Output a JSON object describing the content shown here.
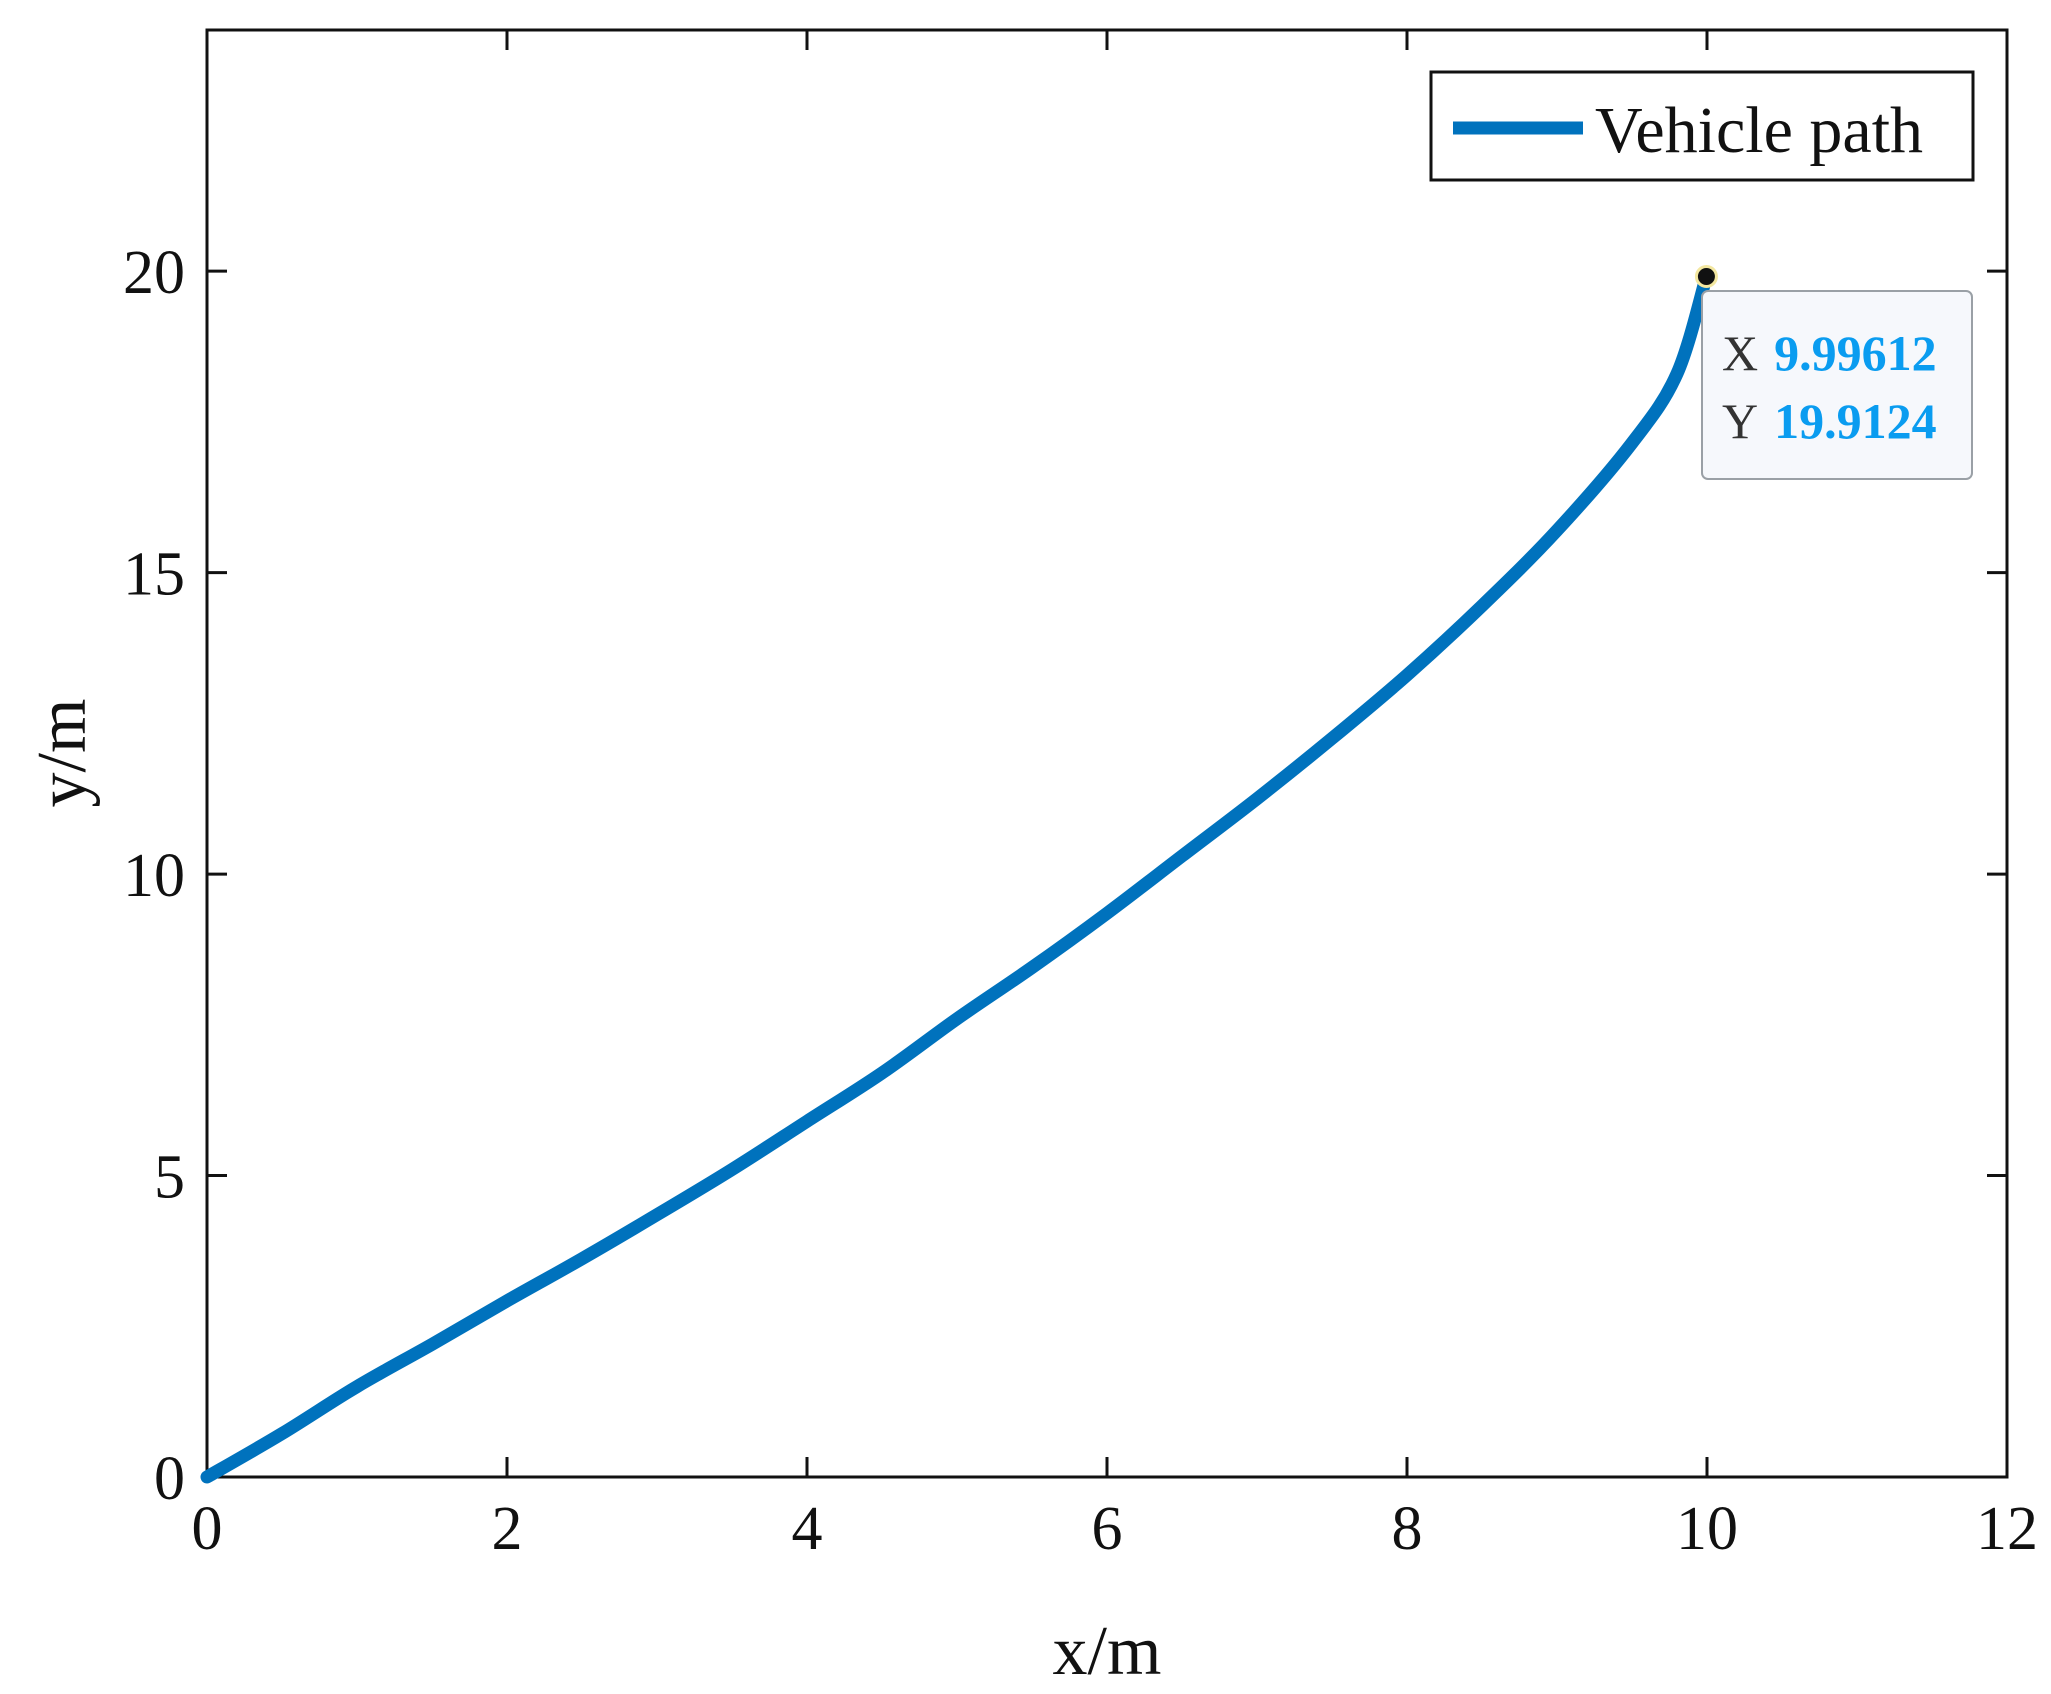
{
  "chart_data": {
    "type": "line",
    "xlabel": "x/m",
    "ylabel": "y/m",
    "xlim": [
      0,
      12
    ],
    "ylim": [
      0,
      24
    ],
    "xticks": [
      0,
      2,
      4,
      6,
      8,
      10,
      12
    ],
    "yticks": [
      0,
      5,
      10,
      15,
      20
    ],
    "grid": false,
    "legend": {
      "position": "top-right",
      "entries": [
        "Vehicle path"
      ]
    },
    "series": [
      {
        "name": "Vehicle path",
        "color": "#0072bd",
        "x": [
          0,
          0.5,
          1,
          1.5,
          2,
          2.5,
          3,
          3.5,
          4,
          4.5,
          5,
          5.5,
          6,
          6.5,
          7,
          7.5,
          8,
          8.5,
          9,
          9.5,
          9.8,
          9.99612
        ],
        "y": [
          0,
          0.72,
          1.5,
          2.2,
          2.92,
          3.62,
          4.35,
          5.1,
          5.9,
          6.7,
          7.6,
          8.45,
          9.35,
          10.3,
          11.25,
          12.25,
          13.3,
          14.45,
          15.7,
          17.15,
          18.3,
          19.9124
        ]
      }
    ],
    "datatip": {
      "x_key": "X",
      "x_value": "9.99612",
      "y_key": "Y",
      "y_value": "19.9124",
      "point": [
        9.99612,
        19.9124
      ]
    }
  }
}
